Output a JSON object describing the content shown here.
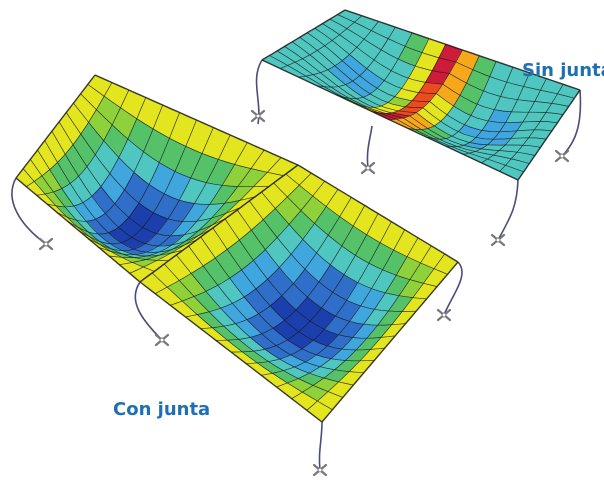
{
  "labels": {
    "without_joint": "Sin junta",
    "with_joint": "Con junta"
  },
  "colors": {
    "label": "#1f6fb5",
    "mesh_line": "#1b1b1b",
    "cable": "#4a4d7a",
    "scale_low_to_high": [
      "#1c3fae",
      "#2f6ec9",
      "#3fa6de",
      "#4fc7c0",
      "#55c26a",
      "#8fd13a",
      "#e3e51f",
      "#f7a81a",
      "#ee4a1f",
      "#d01a3a"
    ]
  }
}
